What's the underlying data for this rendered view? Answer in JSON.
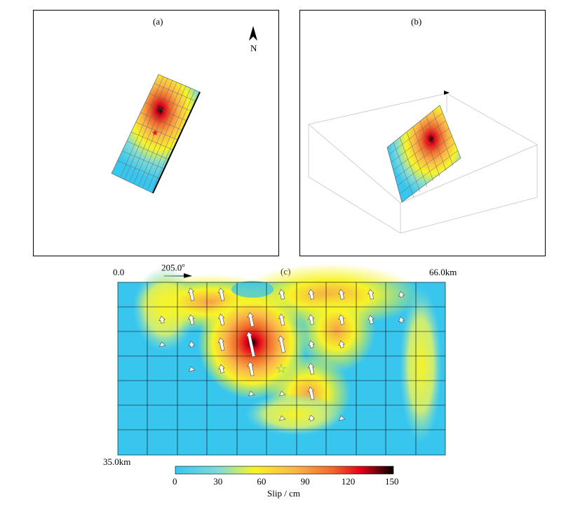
{
  "panels": {
    "a": {
      "label": "(a)",
      "north": "N"
    },
    "b": {
      "label": "(b)"
    },
    "c": {
      "label": "(c)",
      "x_start": "0.0",
      "x_end": "66.0km",
      "depth": "35.0km",
      "strike": "205.0",
      "strike_deg": "o"
    }
  },
  "colorbar": {
    "ticks": [
      "0",
      "30",
      "60",
      "90",
      "120",
      "150"
    ],
    "label": "Slip / cm",
    "colors": [
      "#39c6ee",
      "#7fdcd6",
      "#f7f428",
      "#fbb54a",
      "#f06a2c",
      "#e3001a",
      "#000000"
    ]
  },
  "epicenter_marker_colors": {
    "map": "#e31a1c",
    "fault": "#25c4c4"
  }
}
